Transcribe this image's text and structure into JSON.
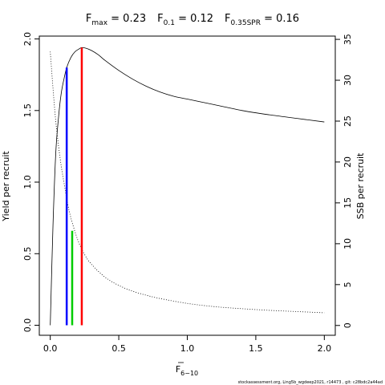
{
  "title": {
    "fmax": {
      "sym": "F",
      "sub": "max",
      "rest": " = 0.23"
    },
    "f01": {
      "sym": "F",
      "sub": "0.1",
      "rest": " = 0.12"
    },
    "f35": {
      "sym": "F",
      "sub": "0.35SPR",
      "rest": " = 0.16"
    }
  },
  "footer": "stockassessment.org, Ling5b_wgdeep2021, r14473 , git: c28bdc2a44ad",
  "chart_data": {
    "type": "line",
    "xlabel": {
      "sym": "F",
      "sub": "6−10"
    },
    "ylabel_left": "Yield per recruit",
    "ylabel_right": "SSB per recruit",
    "xlim": [
      -0.08,
      2.08
    ],
    "ylim_left": [
      -0.07,
      2.02
    ],
    "ylim_right": [
      -1.2,
      35.4
    ],
    "x_ticks": [
      0,
      0.5,
      1.0,
      1.5,
      2.0
    ],
    "x_tick_labels": [
      "0.0",
      "0.5",
      "1.0",
      "1.5",
      "2.0"
    ],
    "y_left_ticks": [
      0,
      0.5,
      1.0,
      1.5,
      2.0
    ],
    "y_left_tick_labels": [
      "0.0",
      "0.5",
      "1.0",
      "1.5",
      "2.0"
    ],
    "y_right_ticks": [
      0,
      5,
      10,
      15,
      20,
      25,
      30,
      35
    ],
    "y_right_tick_labels": [
      "0",
      "5",
      "10",
      "15",
      "20",
      "25",
      "30",
      "35"
    ],
    "series": [
      {
        "axis": "left",
        "style": "solid",
        "color": "#000000",
        "x": [
          0,
          0.02,
          0.04,
          0.06,
          0.08,
          0.1,
          0.12,
          0.15,
          0.18,
          0.21,
          0.23,
          0.26,
          0.3,
          0.35,
          0.4,
          0.5,
          0.6,
          0.7,
          0.8,
          0.9,
          1.0,
          1.2,
          1.4,
          1.6,
          1.8,
          2.0
        ],
        "y": [
          0,
          0.7,
          1.2,
          1.45,
          1.62,
          1.72,
          1.8,
          1.87,
          1.91,
          1.93,
          1.94,
          1.935,
          1.92,
          1.89,
          1.85,
          1.78,
          1.72,
          1.67,
          1.63,
          1.6,
          1.58,
          1.54,
          1.5,
          1.47,
          1.445,
          1.42
        ]
      },
      {
        "axis": "right",
        "style": "dotted",
        "color": "#000000",
        "x": [
          0,
          0.02,
          0.04,
          0.06,
          0.08,
          0.1,
          0.12,
          0.15,
          0.2,
          0.25,
          0.3,
          0.4,
          0.5,
          0.6,
          0.7,
          0.8,
          1.0,
          1.2,
          1.4,
          1.6,
          1.8,
          2.0
        ],
        "y": [
          33.5,
          29.0,
          25.0,
          22.0,
          19.5,
          17.5,
          15.5,
          13.2,
          10.5,
          8.7,
          7.5,
          5.9,
          4.9,
          4.2,
          3.7,
          3.3,
          2.7,
          2.3,
          2.05,
          1.85,
          1.7,
          1.55
        ]
      }
    ],
    "reference_lines": [
      {
        "name": "F0.1",
        "x": 0.12,
        "y_top": 1.8,
        "color": "#0000ff"
      },
      {
        "name": "F0.35SPR",
        "x": 0.16,
        "y_top": 0.66,
        "color": "#00cc00"
      },
      {
        "name": "Fmax",
        "x": 0.23,
        "y_top": 1.94,
        "color": "#ff0000"
      }
    ]
  }
}
